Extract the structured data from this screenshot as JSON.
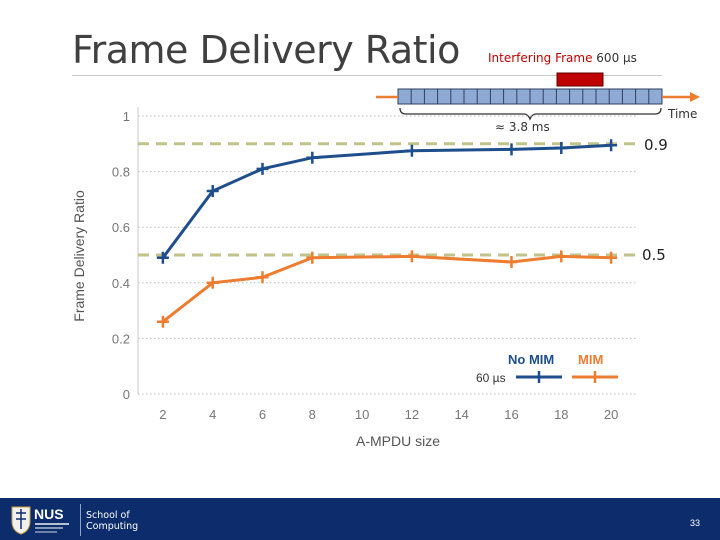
{
  "slide": {
    "title": "Frame Delivery Ratio",
    "page_number": "33"
  },
  "diagram": {
    "interfering_label": "Interfering Frame",
    "interfering_duration": "600 µs",
    "time_label": "Time",
    "span_label": "≈ 3.8 ms"
  },
  "reference_lines": [
    {
      "value": 0.9,
      "label": "0.9"
    },
    {
      "value": 0.5,
      "label": "0.5"
    }
  ],
  "footer": {
    "logo_text": "NUS",
    "school_line1": "School of",
    "school_line2": "Computing"
  },
  "chart_data": {
    "type": "line",
    "xlabel": "A-MPDU size",
    "ylabel": "Frame Delivery Ratio",
    "xlim": [
      1,
      21
    ],
    "ylim": [
      0,
      1
    ],
    "x_ticks": [
      "2",
      "4",
      "6",
      "8",
      "10",
      "12",
      "14",
      "16",
      "18",
      "20"
    ],
    "y_ticks": [
      "0",
      "0.2",
      "0.4",
      "0.6",
      "0.8",
      "1"
    ],
    "grid": "horizontal dotted",
    "legend": {
      "title": "60 µs",
      "placement": "bottom-right"
    },
    "series": [
      {
        "name": "No MIM",
        "color": "#1f4e8c",
        "x": [
          2,
          4,
          6,
          8,
          12,
          16,
          18,
          20
        ],
        "y": [
          0.49,
          0.73,
          0.81,
          0.85,
          0.875,
          0.88,
          0.885,
          0.895
        ]
      },
      {
        "name": "MIM",
        "color": "#ed7d31",
        "x": [
          2,
          4,
          6,
          8,
          12,
          16,
          18,
          20
        ],
        "y": [
          0.26,
          0.4,
          0.42,
          0.49,
          0.495,
          0.475,
          0.495,
          0.49
        ]
      }
    ],
    "reference_color": "#c2c38a"
  }
}
